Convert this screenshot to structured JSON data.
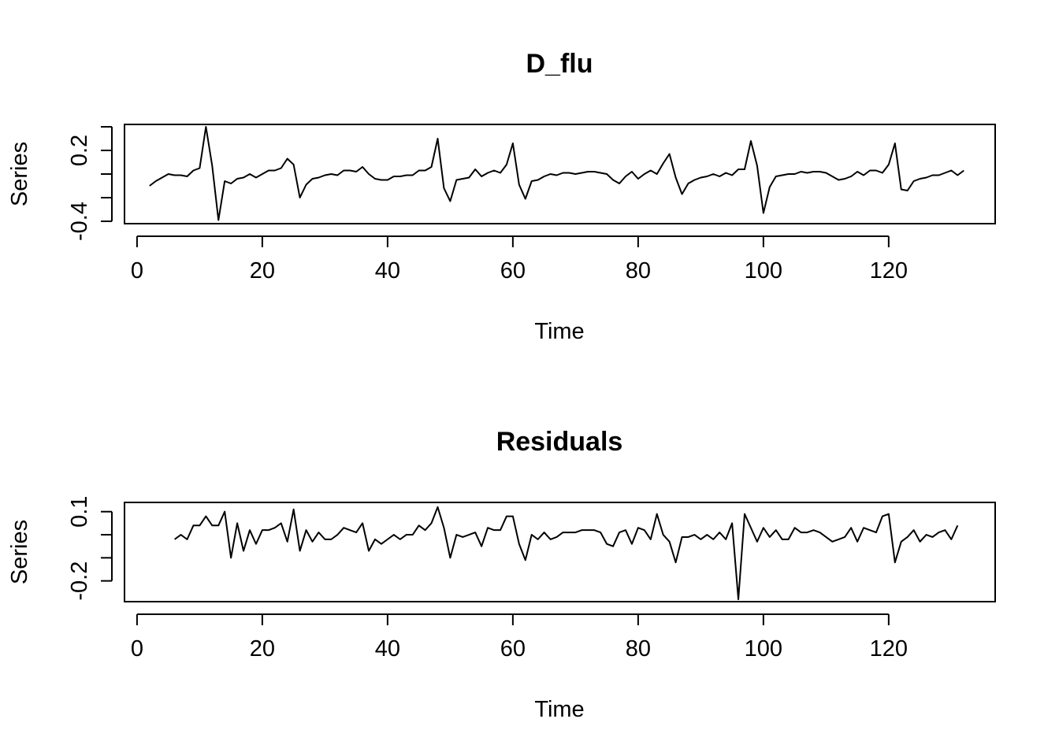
{
  "chart_data": [
    {
      "type": "line",
      "title": "D_flu",
      "xlabel": "Time",
      "ylabel": "Series",
      "xlim": [
        -2,
        137
      ],
      "ylim": [
        -0.42,
        0.42
      ],
      "xticks": [
        0,
        20,
        40,
        60,
        80,
        100,
        120
      ],
      "xtick_labels": [
        "0",
        "20",
        "40",
        "60",
        "80",
        "100",
        "120"
      ],
      "yticks": [
        -0.4,
        -0.2,
        0.0,
        0.2,
        0.4
      ],
      "ytick_labels": [
        "-0.4",
        "",
        "",
        "0.2",
        ""
      ],
      "grid": false,
      "series": [
        {
          "x_start": 2,
          "values": [
            -0.1,
            -0.06,
            -0.03,
            0.0,
            -0.01,
            -0.01,
            -0.02,
            0.03,
            0.05,
            0.4,
            0.07,
            -0.39,
            -0.06,
            -0.08,
            -0.04,
            -0.03,
            0.0,
            -0.03,
            0.0,
            0.03,
            0.03,
            0.05,
            0.13,
            0.08,
            -0.2,
            -0.09,
            -0.04,
            -0.03,
            -0.01,
            0.0,
            -0.01,
            0.03,
            0.03,
            0.02,
            0.06,
            0.0,
            -0.04,
            -0.05,
            -0.05,
            -0.02,
            -0.02,
            -0.01,
            -0.01,
            0.03,
            0.03,
            0.06,
            0.3,
            -0.12,
            -0.23,
            -0.05,
            -0.04,
            -0.03,
            0.04,
            -0.02,
            0.01,
            0.03,
            0.01,
            0.08,
            0.26,
            -0.09,
            -0.21,
            -0.06,
            -0.05,
            -0.02,
            0.0,
            -0.01,
            0.01,
            0.01,
            0.0,
            0.01,
            0.02,
            0.02,
            0.01,
            0.0,
            -0.05,
            -0.08,
            -0.02,
            0.02,
            -0.04,
            0.0,
            0.03,
            0.0,
            0.09,
            0.17,
            -0.03,
            -0.17,
            -0.08,
            -0.05,
            -0.03,
            -0.02,
            0.0,
            -0.02,
            0.01,
            -0.01,
            0.04,
            0.04,
            0.28,
            0.07,
            -0.33,
            -0.11,
            -0.02,
            -0.01,
            0.0,
            0.0,
            0.02,
            0.01,
            0.02,
            0.02,
            0.01,
            -0.02,
            -0.05,
            -0.04,
            -0.02,
            0.02,
            -0.01,
            0.03,
            0.03,
            0.01,
            0.08,
            0.26,
            -0.13,
            -0.14,
            -0.06,
            -0.04,
            -0.03,
            -0.01,
            -0.01,
            0.01,
            0.03,
            -0.01,
            0.03
          ]
        }
      ]
    },
    {
      "type": "line",
      "title": "Residuals",
      "xlabel": "Time",
      "ylabel": "Series",
      "xlim": [
        -2,
        137
      ],
      "ylim": [
        -0.29,
        0.14
      ],
      "xticks": [
        0,
        20,
        40,
        60,
        80,
        100,
        120
      ],
      "xtick_labels": [
        "0",
        "20",
        "40",
        "60",
        "80",
        "100",
        "120"
      ],
      "yticks": [
        -0.2,
        -0.1,
        0.0,
        0.1
      ],
      "ytick_labels": [
        "-0.2",
        "",
        "",
        "0.1"
      ],
      "grid": false,
      "series": [
        {
          "x_start": 6,
          "values": [
            -0.02,
            0.0,
            -0.02,
            0.04,
            0.04,
            0.08,
            0.04,
            0.04,
            0.1,
            -0.1,
            0.05,
            -0.07,
            0.02,
            -0.04,
            0.02,
            0.02,
            0.03,
            0.05,
            -0.03,
            0.11,
            -0.07,
            0.02,
            -0.03,
            0.01,
            -0.02,
            -0.02,
            0.0,
            0.03,
            0.02,
            0.01,
            0.05,
            -0.07,
            -0.02,
            -0.04,
            -0.02,
            0.0,
            -0.02,
            0.0,
            0.0,
            0.04,
            0.02,
            0.05,
            0.12,
            0.03,
            -0.1,
            0.0,
            -0.01,
            0.0,
            0.01,
            -0.05,
            0.03,
            0.02,
            0.02,
            0.08,
            0.08,
            -0.04,
            -0.11,
            0.0,
            -0.02,
            0.01,
            -0.02,
            -0.01,
            0.01,
            0.01,
            0.01,
            0.02,
            0.02,
            0.02,
            0.01,
            -0.04,
            -0.05,
            0.01,
            0.02,
            -0.04,
            0.03,
            0.02,
            -0.02,
            0.09,
            0.0,
            -0.03,
            -0.12,
            -0.01,
            -0.01,
            0.0,
            -0.02,
            0.0,
            -0.02,
            0.01,
            -0.02,
            0.05,
            -0.28,
            0.09,
            0.03,
            -0.03,
            0.03,
            -0.01,
            0.02,
            -0.02,
            -0.02,
            0.03,
            0.01,
            0.01,
            0.02,
            0.01,
            -0.01,
            -0.03,
            -0.02,
            -0.01,
            0.03,
            -0.03,
            0.03,
            0.02,
            0.01,
            0.08,
            0.09,
            -0.12,
            -0.03,
            -0.01,
            0.02,
            -0.03,
            0.0,
            -0.01,
            0.01,
            0.02,
            -0.02,
            0.04
          ]
        }
      ]
    }
  ]
}
